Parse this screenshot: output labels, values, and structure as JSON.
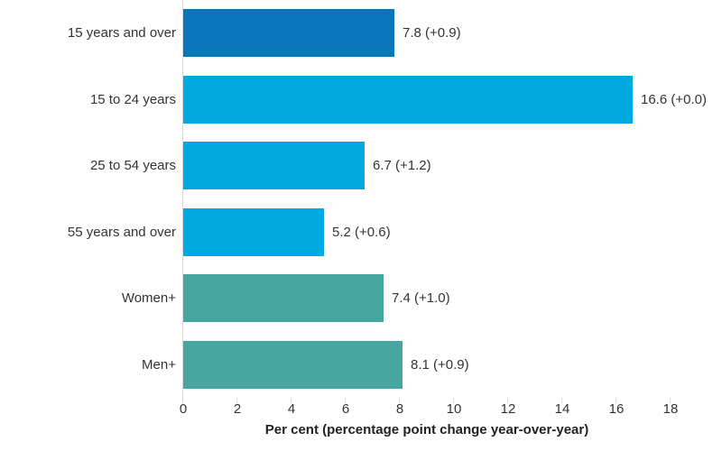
{
  "chart_data": {
    "type": "bar",
    "orientation": "horizontal",
    "title": "",
    "xlabel": "Per cent (percentage point change year-over-year)",
    "ylabel": "",
    "categories": [
      "15 years and over",
      "15 to 24 years",
      "25 to 54 years",
      "55 years and over",
      "Women+",
      "Men+"
    ],
    "values": [
      7.8,
      16.6,
      6.7,
      5.2,
      7.4,
      8.1
    ],
    "year_over_year_changes": [
      0.9,
      0.0,
      1.2,
      0.6,
      1.0,
      0.9
    ],
    "value_labels": [
      "7.8 (+0.9)",
      "16.6 (+0.0)",
      "6.7 (+1.2)",
      "5.2 (+0.6)",
      "7.4 (+1.0)",
      "8.1 (+0.9)"
    ],
    "bar_colors": [
      "#0a76ba",
      "#00a9e0",
      "#00a9e0",
      "#00a9e0",
      "#47a69f",
      "#47a69f"
    ],
    "x_ticks": [
      0,
      2,
      4,
      6,
      8,
      10,
      12,
      14,
      16,
      18
    ],
    "xlim": [
      0,
      18
    ],
    "grid": false,
    "legend": false,
    "axis_color": "#d9d9d9",
    "text_color": "#333333"
  }
}
